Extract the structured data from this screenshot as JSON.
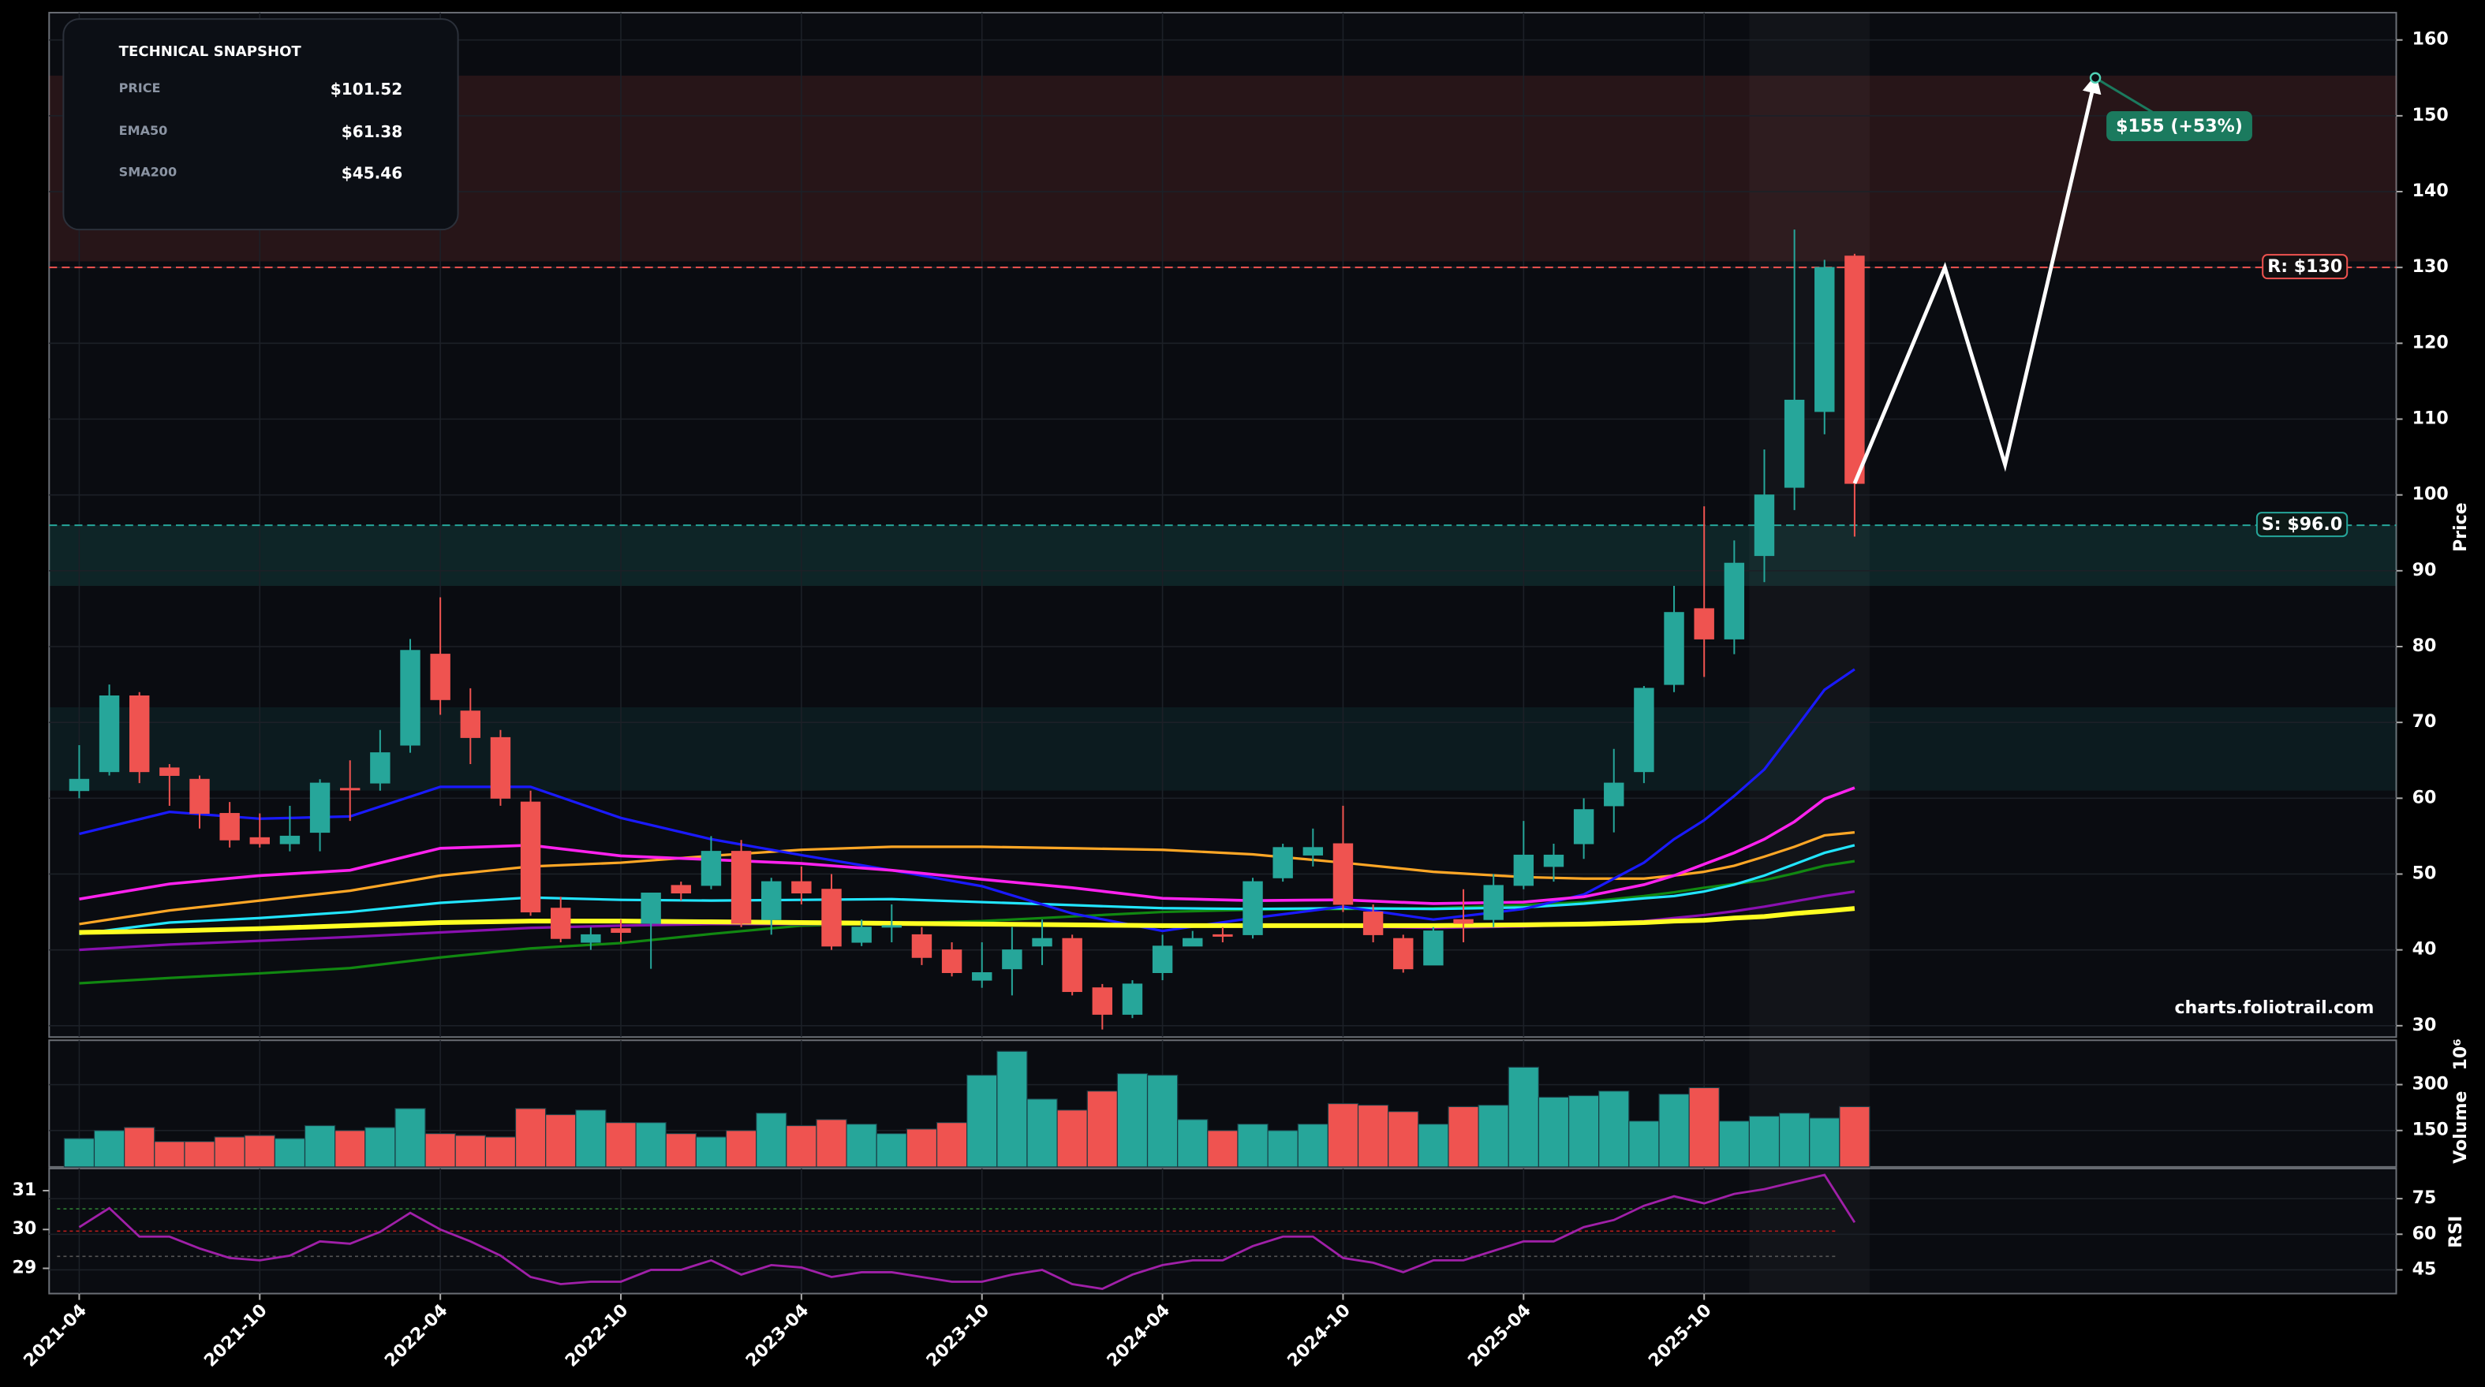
{
  "chart_data": {
    "type": "candlestick",
    "ylabel": "Price",
    "up_color": "#26a69a",
    "down_color": "#ef5350",
    "grid": true,
    "xlim": [
      "2021-03",
      "2027-09"
    ],
    "ylim": [
      28.5,
      163.6
    ],
    "yticks": [
      30,
      40,
      50,
      60,
      70,
      80,
      90,
      100,
      110,
      120,
      130,
      140,
      150,
      160
    ],
    "xticks": [
      "2021-04",
      "2021-10",
      "2022-04",
      "2022-10",
      "2023-04",
      "2023-10",
      "2024-04",
      "2024-10",
      "2025-04",
      "2025-10"
    ],
    "x": [
      "2021-04",
      "2021-05",
      "2021-06",
      "2021-07",
      "2021-08",
      "2021-09",
      "2021-10",
      "2021-11",
      "2021-12",
      "2022-01",
      "2022-02",
      "2022-03",
      "2022-04",
      "2022-05",
      "2022-06",
      "2022-07",
      "2022-08",
      "2022-09",
      "2022-10",
      "2022-11",
      "2022-12",
      "2023-01",
      "2023-02",
      "2023-03",
      "2023-04",
      "2023-05",
      "2023-06",
      "2023-07",
      "2023-08",
      "2023-09",
      "2023-10",
      "2023-11",
      "2023-12",
      "2024-01",
      "2024-02",
      "2024-03",
      "2024-04",
      "2024-05",
      "2024-06",
      "2024-07",
      "2024-08",
      "2024-09",
      "2024-10",
      "2024-11",
      "2024-12",
      "2025-01",
      "2025-02",
      "2025-03",
      "2025-04",
      "2025-05",
      "2025-06",
      "2025-07",
      "2025-08",
      "2025-09",
      "2025-10",
      "2025-11",
      "2025-12",
      "2026-01",
      "2026-02",
      "2026-03"
    ],
    "open": [
      61,
      63.5,
      73.5,
      64,
      62.5,
      58,
      54.8,
      54,
      55.5,
      61.3,
      62,
      67,
      79,
      71.5,
      68,
      59.5,
      45.5,
      41,
      42.8,
      43.5,
      48.5,
      48.5,
      53,
      44,
      49,
      48,
      41,
      43,
      42,
      40,
      36,
      37.5,
      40.5,
      41.5,
      35,
      31.5,
      37,
      40.5,
      42,
      42,
      49.5,
      52.5,
      54,
      45,
      41.5,
      38,
      44,
      44,
      48.5,
      51,
      54,
      59,
      63.5,
      75,
      85,
      81,
      92,
      101,
      111,
      131.5
    ],
    "high": [
      67,
      75,
      74,
      64.5,
      63,
      59.5,
      58,
      59,
      62.5,
      65,
      69,
      81,
      86.5,
      74.5,
      69,
      61,
      47,
      43,
      44,
      47.5,
      49,
      55,
      54.5,
      49.5,
      51,
      50,
      44,
      46,
      43,
      41,
      41,
      43,
      44,
      42,
      35.5,
      36,
      42,
      42.5,
      43,
      49.5,
      54,
      56,
      59,
      46,
      42,
      43,
      48,
      50,
      57,
      54,
      60,
      66.5,
      74.8,
      88,
      98.5,
      94,
      106,
      135,
      131,
      131.8
    ],
    "low": [
      60,
      63,
      62,
      59,
      56,
      53.5,
      53.5,
      53,
      53,
      57,
      61,
      66,
      71,
      64.5,
      59,
      44.5,
      41,
      40,
      41,
      37.5,
      46.5,
      48,
      43,
      42,
      46,
      40,
      40.5,
      41,
      38,
      36.5,
      35,
      34,
      38,
      34,
      29.5,
      31,
      36,
      40.5,
      41,
      41.5,
      49,
      51,
      45,
      41,
      37,
      38,
      41,
      43,
      48,
      49,
      52,
      55.5,
      62,
      74,
      76,
      79,
      88.5,
      98,
      108,
      94.5
    ],
    "close": [
      62.5,
      73.5,
      63.5,
      63,
      58,
      54.5,
      54,
      55,
      62,
      61.2,
      66,
      79.5,
      73,
      68,
      60,
      45,
      41.5,
      42,
      42.3,
      47.5,
      47.5,
      53,
      43.5,
      49,
      47.5,
      40.5,
      43,
      43.2,
      39,
      37,
      37,
      40,
      41.5,
      34.5,
      31.5,
      35.5,
      40.5,
      41.5,
      41.8,
      49,
      53.5,
      53.5,
      46,
      42,
      37.5,
      42.5,
      43.5,
      48.5,
      52.5,
      52.5,
      58.5,
      62,
      74.5,
      84.5,
      81,
      91,
      100,
      112.5,
      130,
      101.52
    ],
    "overlay_x": [
      "2021-04",
      "2021-07",
      "2021-10",
      "2022-01",
      "2022-04",
      "2022-07",
      "2022-10",
      "2023-01",
      "2023-04",
      "2023-07",
      "2023-10",
      "2024-01",
      "2024-04",
      "2024-07",
      "2024-10",
      "2025-01",
      "2025-04",
      "2025-06",
      "2025-08",
      "2025-09",
      "2025-10",
      "2025-11",
      "2025-12",
      "2026-01",
      "2026-02",
      "2026-03"
    ],
    "overlays": [
      {
        "color": "#1414e6",
        "width": 1.6,
        "values": [
          42.3,
          42.5,
          42.8,
          43.2,
          43.6,
          43.8,
          43.8,
          43.7,
          43.6,
          43.5,
          43.4,
          43.3,
          43.2,
          43.2,
          43.2,
          43.2,
          43.3,
          43.4,
          43.6,
          43.8,
          43.9,
          44.2,
          44.4,
          44.8,
          45.1,
          45.46
        ]
      },
      {
        "color": "#118811",
        "width": 1.6,
        "values": [
          35.6,
          36.3,
          36.9,
          37.6,
          39,
          40.2,
          40.9,
          42.1,
          43.2,
          43.5,
          43.8,
          44.4,
          45,
          45.3,
          45.4,
          45.5,
          45.9,
          46.3,
          47.1,
          47.6,
          48.2,
          48.7,
          49.2,
          50.1,
          51.1,
          51.7
        ]
      },
      {
        "color": "#8a10b0",
        "width": 1.6,
        "values": [
          40,
          40.7,
          41.2,
          41.7,
          42.3,
          42.9,
          43.2,
          43.4,
          43.4,
          43.4,
          43.4,
          43.3,
          43.2,
          43.2,
          43.1,
          42.9,
          43.1,
          43.4,
          43.8,
          44.2,
          44.6,
          45.1,
          45.7,
          46.4,
          47.1,
          47.7
        ]
      },
      {
        "color": "#ffa726",
        "width": 1.6,
        "values": [
          43.4,
          45.2,
          46.5,
          47.8,
          49.8,
          51,
          51.5,
          52.4,
          53.2,
          53.6,
          53.6,
          53.4,
          53.2,
          52.6,
          51.5,
          50.3,
          49.6,
          49.4,
          49.4,
          49.8,
          50.3,
          51.1,
          52.3,
          53.6,
          55.1,
          55.5
        ]
      },
      {
        "color": "#22e5ff",
        "width": 1.6,
        "values": [
          42.1,
          43.6,
          44.2,
          45,
          46.2,
          46.9,
          46.6,
          46.5,
          46.6,
          46.7,
          46.3,
          45.9,
          45.5,
          45.4,
          45.5,
          45.4,
          45.6,
          46.1,
          46.8,
          47.1,
          47.7,
          48.6,
          49.8,
          51.3,
          52.8,
          53.8
        ]
      },
      {
        "color": "#1a1aff",
        "width": 1.6,
        "values": [
          55.3,
          58.2,
          57.3,
          57.6,
          61.5,
          61.5,
          57.4,
          54.6,
          52.5,
          50.5,
          48.4,
          44.8,
          42.5,
          44.2,
          45.7,
          44,
          45.4,
          47.3,
          51.5,
          54.6,
          57.1,
          60.3,
          63.8,
          69,
          74.3,
          77
        ]
      },
      {
        "color": "#ff22ee",
        "width": 1.8,
        "values": [
          46.7,
          48.7,
          49.8,
          50.5,
          53.4,
          53.8,
          52.4,
          51.9,
          51.4,
          50.5,
          49.3,
          48.2,
          46.8,
          46.5,
          46.6,
          46.1,
          46.3,
          47,
          48.6,
          49.8,
          51.3,
          52.8,
          54.6,
          56.9,
          59.9,
          61.38
        ]
      },
      {
        "color": "#ffff22",
        "width": 3,
        "values": [
          42.3,
          42.5,
          42.8,
          43.2,
          43.6,
          43.8,
          43.8,
          43.7,
          43.6,
          43.5,
          43.4,
          43.3,
          43.2,
          43.2,
          43.2,
          43.2,
          43.3,
          43.4,
          43.6,
          43.8,
          43.9,
          44.2,
          44.4,
          44.8,
          45.1,
          45.46
        ]
      }
    ],
    "zones": [
      {
        "from": 130.8,
        "to": 155.3,
        "color": "rgba(239,83,80,0.13)"
      },
      {
        "from": 88,
        "to": 96,
        "color": "rgba(38,166,154,0.16)"
      },
      {
        "from": 61,
        "to": 72,
        "color": "rgba(38,166,154,0.10)"
      }
    ],
    "levels": [
      {
        "value": 130,
        "label": "R: $130",
        "color": "#ef5350"
      },
      {
        "value": 96,
        "label": "S: $96.0",
        "color": "#26a69a"
      }
    ],
    "highlight": {
      "from": "2025-12",
      "to": "2026-03"
    },
    "projection": {
      "color": "#ffffff",
      "x": [
        "2026-03",
        "2026-06",
        "2026-08",
        "2026-11"
      ],
      "values": [
        101.52,
        130,
        104,
        155
      ]
    },
    "annotation": {
      "x": "2026-11",
      "y": 155,
      "label": "$155 (+53%)",
      "color": "#1b7a5e"
    },
    "watermark": "charts.foliotrail.com",
    "volume": {
      "ylabel": "Volume",
      "offset_label": "10⁶",
      "ylim": [
        31,
        445
      ],
      "yticks": [
        150,
        300
      ],
      "values": [
        124,
        150,
        160,
        114,
        114,
        129,
        134,
        124,
        166,
        150,
        160,
        222,
        140,
        134,
        129,
        222,
        202,
        217,
        176,
        176,
        140,
        129,
        150,
        207,
        166,
        186,
        171,
        140,
        155,
        176,
        331,
        409,
        253,
        217,
        279,
        336,
        331,
        186,
        150,
        171,
        150,
        171,
        238,
        233,
        212,
        171,
        228,
        233,
        357,
        259,
        264,
        279,
        181,
        269,
        290,
        181,
        197,
        207,
        191,
        228
      ]
    },
    "rsi": {
      "ylabel": "RSI",
      "color": "#a020a8",
      "ylim": [
        28.35,
        31.57
      ],
      "yticks": [
        29,
        30,
        31
      ],
      "y2lim": [
        35,
        87.7
      ],
      "y2ticks": [
        45,
        60,
        75
      ],
      "axis": "y2",
      "levels": [
        {
          "value": 70.7,
          "color": "#2e7d32"
        },
        {
          "value": 61.3,
          "color": "#b71c1c"
        },
        {
          "value": 50.7,
          "color": "#555555"
        }
      ],
      "values": [
        63,
        71,
        59,
        59,
        54,
        50,
        49,
        51,
        57,
        56,
        61,
        69,
        62,
        57,
        51,
        42,
        39,
        40,
        40,
        45,
        45,
        49,
        43,
        47,
        46,
        42,
        44,
        44,
        42,
        40,
        40,
        43,
        45,
        39,
        37,
        43,
        47,
        49,
        49,
        55,
        59,
        59,
        50,
        48,
        44,
        49,
        49,
        53,
        57,
        57,
        63,
        66,
        72,
        76,
        73,
        77,
        79,
        82,
        85,
        65
      ]
    }
  },
  "snapshot": {
    "title": "TECHNICAL SNAPSHOT",
    "rows": [
      {
        "label": "PRICE",
        "value": "$101.52",
        "color": "#ffffff"
      },
      {
        "label": "EMA50",
        "value": "$61.38",
        "color": "#ff3df0"
      },
      {
        "label": "SMA200",
        "value": "$45.46",
        "color": "#ffee22"
      }
    ]
  }
}
